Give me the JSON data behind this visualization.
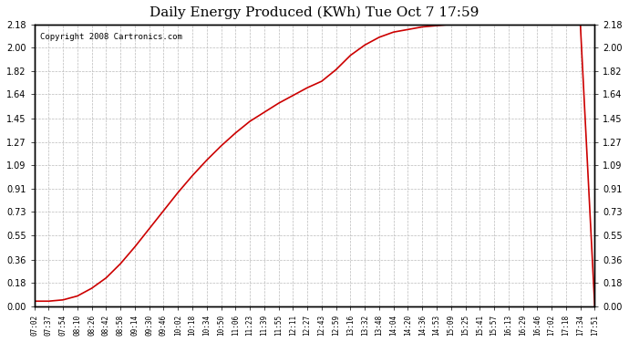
{
  "title": "Daily Energy Produced (KWh) Tue Oct 7 17:59",
  "copyright_text": "Copyright 2008 Cartronics.com",
  "line_color": "#cc0000",
  "background_color": "#ffffff",
  "plot_bg_color": "#ffffff",
  "grid_color": "#bbbbbb",
  "yticks": [
    0.0,
    0.18,
    0.36,
    0.55,
    0.73,
    0.91,
    1.09,
    1.27,
    1.45,
    1.64,
    1.82,
    2.0,
    2.18
  ],
  "ymax": 2.18,
  "x_labels": [
    "07:02",
    "07:37",
    "07:54",
    "08:10",
    "08:26",
    "08:42",
    "08:58",
    "09:14",
    "09:30",
    "09:46",
    "10:02",
    "10:18",
    "10:34",
    "10:50",
    "11:06",
    "11:23",
    "11:39",
    "11:55",
    "12:11",
    "12:27",
    "12:43",
    "12:59",
    "13:16",
    "13:32",
    "13:48",
    "14:04",
    "14:20",
    "14:36",
    "14:53",
    "15:09",
    "15:25",
    "15:41",
    "15:57",
    "16:13",
    "16:29",
    "16:46",
    "17:02",
    "17:18",
    "17:34",
    "17:51"
  ],
  "curve_x_indices": [
    0,
    1,
    2,
    3,
    4,
    5,
    6,
    7,
    8,
    9,
    10,
    11,
    12,
    13,
    14,
    15,
    16,
    17,
    18,
    19,
    20,
    21,
    22,
    23,
    24,
    25,
    26,
    27,
    28,
    29,
    30,
    31,
    32,
    33,
    34,
    35,
    36,
    37,
    38,
    39
  ],
  "curve_y_values": [
    0.04,
    0.04,
    0.05,
    0.08,
    0.14,
    0.22,
    0.33,
    0.46,
    0.6,
    0.74,
    0.88,
    1.01,
    1.13,
    1.24,
    1.34,
    1.43,
    1.5,
    1.57,
    1.63,
    1.69,
    1.74,
    1.83,
    1.94,
    2.02,
    2.08,
    2.12,
    2.14,
    2.16,
    2.17,
    2.18,
    2.18,
    2.18,
    2.18,
    2.18,
    2.18,
    2.18,
    2.18,
    2.18,
    2.18,
    0.0
  ]
}
